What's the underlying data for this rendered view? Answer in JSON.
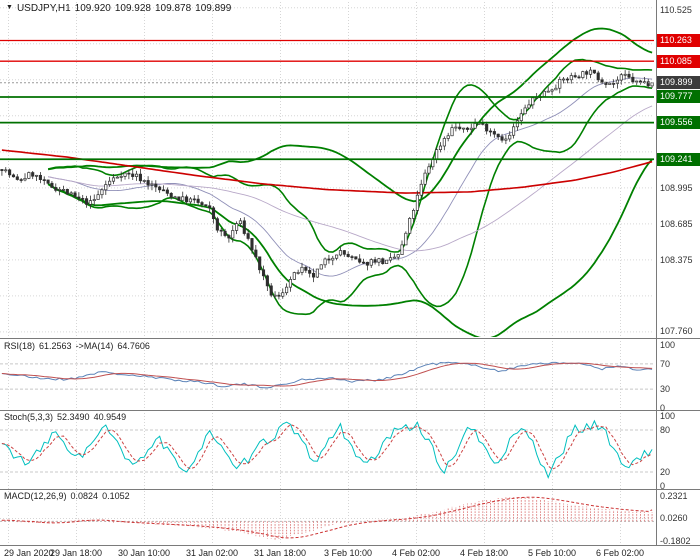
{
  "header": {
    "symbol": "USDJPY,H1",
    "open": "109.920",
    "high": "109.928",
    "low": "109.878",
    "close": "109.899"
  },
  "colors": {
    "grid": "#D6D6D6",
    "separator": "#7A7A7A",
    "candle": "#2E2E2E",
    "up_fill": "#FFFFFF",
    "bands": "#008000",
    "band_mid": "#9090B8",
    "band_mid2": "#B8A8C8",
    "ma_red": "#CC0000",
    "resistance": "#E00000",
    "support": "#007000",
    "current_tag": "#3C3C3C",
    "current_line": "#999999",
    "rsi": "#5B83B8",
    "rsi_ma": "#C05050",
    "stoch": "#00BFBF",
    "stoch_signal": "#CC4444",
    "macd_hist": "#DC7878",
    "macd_signal": "#CC3333",
    "level_dash": "#C8C8C8"
  },
  "time_axis": {
    "labels": [
      "29 Jan 2020",
      "29 Jan 18:00",
      "30 Jan 10:00",
      "31 Jan 02:00",
      "31 Jan 18:00",
      "3 Feb 10:00",
      "4 Feb 02:00",
      "4 Feb 18:00",
      "5 Feb 10:00",
      "6 Feb 02:00"
    ]
  },
  "chart_data": [
    {
      "id": "main",
      "type": "candlestick",
      "pair": "USDJPY",
      "timeframe": "H1",
      "bars": 170,
      "ohlc_last": {
        "open": 109.92,
        "high": 109.928,
        "low": 109.878,
        "close": 109.899
      },
      "y_axis": {
        "visible_labels": [
          "110.525",
          "108.995",
          "108.685",
          "108.375",
          "107.760"
        ],
        "grid_min": 107.755,
        "grid_step": 0.31,
        "grid_max": 110.545,
        "range": [
          107.72,
          110.56
        ]
      },
      "levels": {
        "resistance": [
          110.263,
          110.085
        ],
        "support": [
          109.777,
          109.556,
          109.241
        ],
        "current": 109.899
      },
      "overlays": [
        "Bollinger bands (green)",
        "long-term MA (red)"
      ],
      "price_path": [
        [
          0,
          109.17
        ],
        [
          0.023,
          109.05
        ],
        [
          0.046,
          109.12
        ],
        [
          0.069,
          109.02
        ],
        [
          0.092,
          108.98
        ],
        [
          0.115,
          108.9
        ],
        [
          0.138,
          108.86
        ],
        [
          0.161,
          109.03
        ],
        [
          0.183,
          109.12
        ],
        [
          0.206,
          109.1
        ],
        [
          0.229,
          109.02
        ],
        [
          0.252,
          108.95
        ],
        [
          0.275,
          108.9
        ],
        [
          0.298,
          108.88
        ],
        [
          0.321,
          108.8
        ],
        [
          0.333,
          108.62
        ],
        [
          0.349,
          108.56
        ],
        [
          0.364,
          108.72
        ],
        [
          0.379,
          108.55
        ],
        [
          0.394,
          108.34
        ],
        [
          0.41,
          108.1
        ],
        [
          0.425,
          108.04
        ],
        [
          0.44,
          108.18
        ],
        [
          0.459,
          108.3
        ],
        [
          0.477,
          108.22
        ],
        [
          0.497,
          108.36
        ],
        [
          0.517,
          108.45
        ],
        [
          0.535,
          108.4
        ],
        [
          0.554,
          108.33
        ],
        [
          0.573,
          108.38
        ],
        [
          0.593,
          108.35
        ],
        [
          0.612,
          108.43
        ],
        [
          0.63,
          108.76
        ],
        [
          0.65,
          109.1
        ],
        [
          0.665,
          109.28
        ],
        [
          0.68,
          109.42
        ],
        [
          0.696,
          109.53
        ],
        [
          0.711,
          109.48
        ],
        [
          0.731,
          109.56
        ],
        [
          0.749,
          109.5
        ],
        [
          0.765,
          109.44
        ],
        [
          0.777,
          109.4
        ],
        [
          0.792,
          109.56
        ],
        [
          0.81,
          109.72
        ],
        [
          0.829,
          109.8
        ],
        [
          0.847,
          109.86
        ],
        [
          0.865,
          109.93
        ],
        [
          0.884,
          109.96
        ],
        [
          0.902,
          110.0
        ],
        [
          0.92,
          109.93
        ],
        [
          0.939,
          109.89
        ],
        [
          0.957,
          109.96
        ],
        [
          0.976,
          109.9
        ],
        [
          1,
          109.899
        ]
      ],
      "red_ma_path": [
        [
          0,
          109.32
        ],
        [
          0.1,
          109.26
        ],
        [
          0.2,
          109.18
        ],
        [
          0.3,
          109.1
        ],
        [
          0.4,
          109.03
        ],
        [
          0.5,
          108.98
        ],
        [
          0.62,
          108.95
        ],
        [
          0.72,
          108.96
        ],
        [
          0.8,
          109.0
        ],
        [
          0.88,
          109.06
        ],
        [
          0.94,
          109.13
        ],
        [
          1,
          109.22
        ]
      ]
    },
    {
      "id": "rsi",
      "type": "line",
      "label": {
        "name": "RSI(18)",
        "value": "61.2563",
        "ma": "->MA(14)",
        "ma_value": "64.7606"
      },
      "axis_values": [
        100,
        70,
        30,
        0
      ],
      "axis_labels": [
        "100",
        "70",
        "30",
        "0"
      ],
      "range": [
        0,
        100
      ],
      "levels": [
        70,
        30
      ],
      "points": [
        [
          0,
          55
        ],
        [
          0.05,
          48
        ],
        [
          0.1,
          45
        ],
        [
          0.15,
          57
        ],
        [
          0.2,
          52
        ],
        [
          0.25,
          46
        ],
        [
          0.3,
          42
        ],
        [
          0.34,
          35
        ],
        [
          0.37,
          38
        ],
        [
          0.4,
          33
        ],
        [
          0.43,
          36
        ],
        [
          0.46,
          45
        ],
        [
          0.5,
          48
        ],
        [
          0.54,
          42
        ],
        [
          0.58,
          45
        ],
        [
          0.62,
          55
        ],
        [
          0.65,
          68
        ],
        [
          0.68,
          72
        ],
        [
          0.71,
          70
        ],
        [
          0.74,
          65
        ],
        [
          0.77,
          58
        ],
        [
          0.8,
          68
        ],
        [
          0.83,
          72
        ],
        [
          0.86,
          70
        ],
        [
          0.89,
          72
        ],
        [
          0.92,
          62
        ],
        [
          0.95,
          66
        ],
        [
          0.98,
          60
        ],
        [
          1,
          61.26
        ]
      ],
      "last_values": {
        "main": 61.2563,
        "ma": 64.7606
      }
    },
    {
      "id": "stoch",
      "type": "line",
      "label": {
        "name": "Stoch(5,3,3)",
        "value": "52.3490",
        "signal_value": "40.9549"
      },
      "axis_values": [
        100,
        80,
        20,
        0
      ],
      "axis_labels": [
        "100",
        "80",
        "20",
        "0"
      ],
      "range": [
        0,
        100
      ],
      "levels": [
        80,
        20
      ],
      "points": [
        [
          0,
          60
        ],
        [
          0.04,
          30
        ],
        [
          0.08,
          75
        ],
        [
          0.12,
          40
        ],
        [
          0.16,
          85
        ],
        [
          0.2,
          25
        ],
        [
          0.24,
          70
        ],
        [
          0.28,
          15
        ],
        [
          0.32,
          80
        ],
        [
          0.36,
          20
        ],
        [
          0.4,
          60
        ],
        [
          0.44,
          90
        ],
        [
          0.48,
          35
        ],
        [
          0.52,
          85
        ],
        [
          0.56,
          25
        ],
        [
          0.6,
          75
        ],
        [
          0.64,
          90
        ],
        [
          0.68,
          20
        ],
        [
          0.72,
          85
        ],
        [
          0.76,
          30
        ],
        [
          0.8,
          90
        ],
        [
          0.84,
          15
        ],
        [
          0.88,
          80
        ],
        [
          0.92,
          88
        ],
        [
          0.96,
          25
        ],
        [
          1,
          52.35
        ]
      ],
      "last_values": {
        "main": 52.349,
        "signal": 40.9549
      }
    },
    {
      "id": "macd",
      "type": "histogram+line",
      "label": {
        "name": "MACD(12,26,9)",
        "value": "0.0824",
        "signal_value": "0.1052"
      },
      "axis_values": [
        0.2321,
        0.026,
        -0.1802
      ],
      "axis_labels": [
        "0.2321",
        "0.0260",
        "-0.1802"
      ],
      "range": [
        -0.1802,
        0.2321
      ],
      "points": [
        [
          0,
          0.01
        ],
        [
          0.06,
          -0.02
        ],
        [
          0.12,
          0.02
        ],
        [
          0.18,
          -0.01
        ],
        [
          0.24,
          -0.03
        ],
        [
          0.3,
          -0.05
        ],
        [
          0.36,
          -0.09
        ],
        [
          0.42,
          -0.17
        ],
        [
          0.47,
          -0.1
        ],
        [
          0.52,
          -0.02
        ],
        [
          0.57,
          0.01
        ],
        [
          0.62,
          0.03
        ],
        [
          0.66,
          0.08
        ],
        [
          0.7,
          0.14
        ],
        [
          0.74,
          0.19
        ],
        [
          0.78,
          0.228
        ],
        [
          0.82,
          0.21
        ],
        [
          0.86,
          0.17
        ],
        [
          0.9,
          0.13
        ],
        [
          0.94,
          0.1
        ],
        [
          1,
          0.0824
        ]
      ],
      "last_values": {
        "main": 0.0824,
        "signal": 0.1052
      }
    }
  ]
}
